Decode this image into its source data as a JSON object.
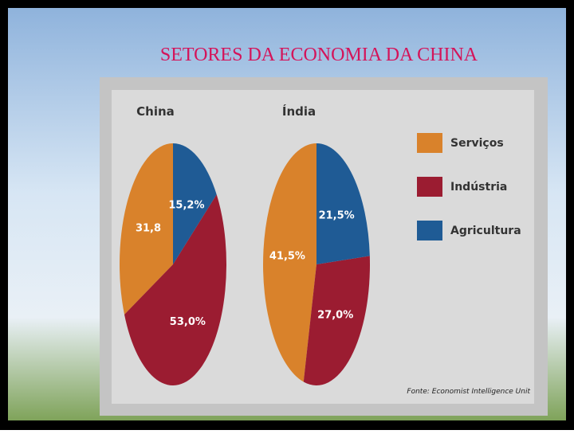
{
  "title": "SETORES DA ECONOMIA DA CHINA",
  "chart_data": [
    {
      "type": "pie",
      "title": "China",
      "categories": [
        "Serviços",
        "Indústria",
        "Agricultura"
      ],
      "values": [
        31.8,
        53.0,
        15.2
      ],
      "value_labels": [
        "31,8",
        "53,0%",
        "15,2%"
      ],
      "colors": [
        "#d9822b",
        "#9b1c31",
        "#1f5b95"
      ]
    },
    {
      "type": "pie",
      "title": "Índia",
      "categories": [
        "Serviços",
        "Indústria",
        "Agricultura"
      ],
      "values": [
        41.5,
        27.0,
        21.5
      ],
      "value_labels": [
        "41,5%",
        "27,0%",
        "21,5%"
      ],
      "colors": [
        "#d9822b",
        "#9b1c31",
        "#1f5b95"
      ]
    }
  ],
  "source": "Fonte: Economist Intelligence Unit"
}
